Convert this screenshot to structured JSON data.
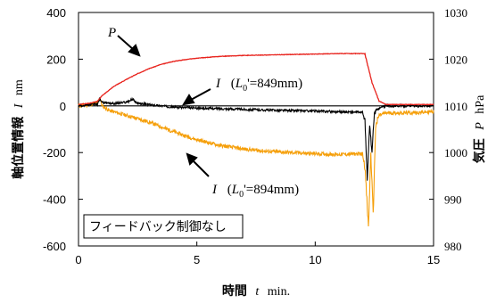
{
  "chart_data": {
    "type": "line",
    "x_axis": {
      "label_main": "時間",
      "label_symbol": "t",
      "label_unit": "min.",
      "range": [
        0,
        15
      ],
      "ticks": [
        0,
        5,
        10,
        15
      ]
    },
    "y_left": {
      "label_main": "軸位置情報",
      "label_symbol": "I",
      "label_unit": "nm",
      "range": [
        -600,
        400
      ],
      "ticks": [
        -600,
        -400,
        -200,
        0,
        200,
        400
      ]
    },
    "y_right": {
      "label_main": "気圧",
      "label_symbol": "P",
      "label_unit": "hPa",
      "range": [
        980,
        1030
      ],
      "ticks": [
        980,
        990,
        1000,
        1010,
        1020,
        1030
      ]
    },
    "grid": false,
    "annotation_box_text": "フィードバック制御なし",
    "series": [
      {
        "name": "P",
        "axis": "right",
        "color": "#e8231d",
        "points": [
          [
            0,
            1010.3
          ],
          [
            0.5,
            1010.6
          ],
          [
            0.8,
            1011.0
          ],
          [
            1.0,
            1012.2
          ],
          [
            1.5,
            1014.2
          ],
          [
            2.0,
            1015.6
          ],
          [
            2.5,
            1016.9
          ],
          [
            3.0,
            1018.0
          ],
          [
            3.5,
            1018.9
          ],
          [
            4.0,
            1019.5
          ],
          [
            4.5,
            1019.9
          ],
          [
            5.0,
            1020.2
          ],
          [
            6.0,
            1020.6
          ],
          [
            7.0,
            1020.8
          ],
          [
            8.0,
            1020.9
          ],
          [
            9.0,
            1021.0
          ],
          [
            10.0,
            1021.1
          ],
          [
            11.0,
            1021.2
          ],
          [
            12.0,
            1021.2
          ],
          [
            12.1,
            1021.1
          ],
          [
            12.4,
            1015.0
          ],
          [
            12.7,
            1011.0
          ],
          [
            13.0,
            1010.3
          ],
          [
            15.0,
            1010.3
          ]
        ]
      },
      {
        "name": "I (L0'=849mm)",
        "axis": "left",
        "color": "#000000",
        "label": {
          "symbol": "I",
          "prefix": "(",
          "sub_var": "L",
          "sub_index": "0",
          "rest": "'=849mm)"
        },
        "points": [
          [
            0,
            0
          ],
          [
            0.8,
            8
          ],
          [
            0.9,
            30
          ],
          [
            1.0,
            15
          ],
          [
            1.5,
            10
          ],
          [
            2.0,
            15
          ],
          [
            2.3,
            28
          ],
          [
            2.5,
            10
          ],
          [
            3.0,
            5
          ],
          [
            4.0,
            -5
          ],
          [
            5.0,
            -10
          ],
          [
            6.0,
            -12
          ],
          [
            7.0,
            -15
          ],
          [
            8.0,
            -18
          ],
          [
            9.0,
            -20
          ],
          [
            10.0,
            -22
          ],
          [
            11.0,
            -25
          ],
          [
            12.0,
            -28
          ],
          [
            12.1,
            -60
          ],
          [
            12.2,
            -320
          ],
          [
            12.3,
            -80
          ],
          [
            12.4,
            -200
          ],
          [
            12.5,
            -30
          ],
          [
            12.6,
            -20
          ],
          [
            12.8,
            -5
          ],
          [
            13.0,
            0
          ],
          [
            15.0,
            0
          ]
        ]
      },
      {
        "name": "I (L0'=894mm)",
        "axis": "left",
        "color": "#f59f0a",
        "label": {
          "symbol": "I",
          "prefix": "(",
          "sub_var": "L",
          "sub_index": "0",
          "rest": "'=894mm)"
        },
        "points": [
          [
            0,
            0
          ],
          [
            0.8,
            10
          ],
          [
            0.9,
            35
          ],
          [
            1.0,
            0
          ],
          [
            1.3,
            -20
          ],
          [
            2.0,
            -40
          ],
          [
            3.0,
            -70
          ],
          [
            4.0,
            -110
          ],
          [
            5.0,
            -145
          ],
          [
            6.0,
            -170
          ],
          [
            7.0,
            -185
          ],
          [
            8.0,
            -195
          ],
          [
            9.0,
            -200
          ],
          [
            10.0,
            -205
          ],
          [
            11.0,
            -208
          ],
          [
            12.0,
            -205
          ],
          [
            12.1,
            -260
          ],
          [
            12.25,
            -520
          ],
          [
            12.35,
            -200
          ],
          [
            12.45,
            -470
          ],
          [
            12.55,
            -90
          ],
          [
            12.7,
            -40
          ],
          [
            13.0,
            -30
          ],
          [
            14.0,
            -30
          ],
          [
            15.0,
            -25
          ]
        ]
      }
    ]
  }
}
